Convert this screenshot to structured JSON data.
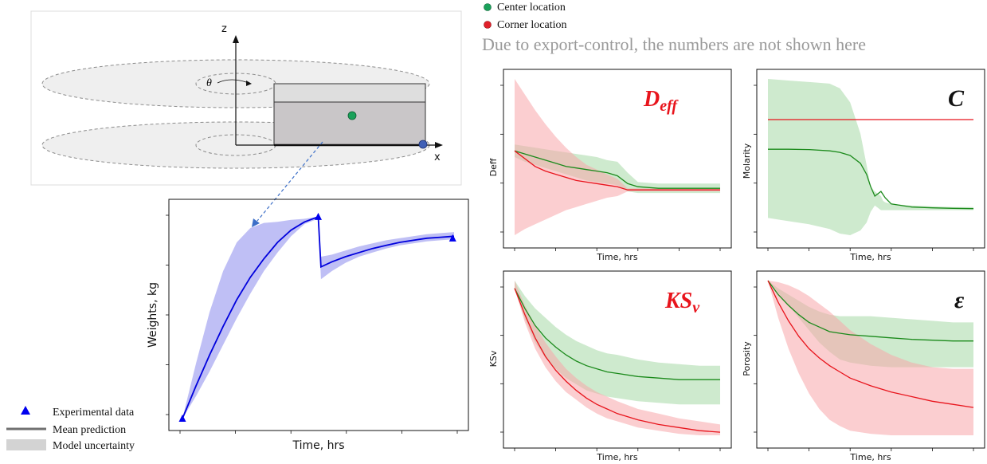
{
  "schematic": {
    "axis_z": "z",
    "axis_x": "x",
    "theta": "θ"
  },
  "legend_left": {
    "items": [
      {
        "label": "Experimental data",
        "kind": "triangle",
        "color": "#0000ee"
      },
      {
        "label": "Mean prediction",
        "kind": "line",
        "color": "#707070"
      },
      {
        "label": "Model uncertainty",
        "kind": "box",
        "color": "#d3d3d3"
      }
    ]
  },
  "legend_right": {
    "items": [
      {
        "label": "Center location",
        "color": "#1aa15a"
      },
      {
        "label": "Corner location",
        "color": "#e0202a"
      }
    ]
  },
  "notice": "Due to export-control, the numbers are not shown here",
  "colors": {
    "center": "#1b8a1b",
    "center_band": "#a6d9a6",
    "corner": "#e8141c",
    "corner_band": "#f7a5aa",
    "weights": "#0000dd",
    "weights_band": "#aaaaf2",
    "title_red": "#e8141c"
  },
  "chart_data": [
    {
      "type": "line",
      "id": "weights",
      "title": "",
      "xlabel": "Time, hrs",
      "ylabel": "Weights, kg",
      "x": [
        0,
        0.05,
        0.1,
        0.15,
        0.2,
        0.25,
        0.3,
        0.35,
        0.4,
        0.45,
        0.5,
        0.51,
        0.55,
        0.6,
        0.65,
        0.7,
        0.75,
        0.8,
        0.85,
        0.9,
        0.95,
        1.0
      ],
      "series": [
        {
          "values": [
            0.0,
            0.16,
            0.31,
            0.45,
            0.58,
            0.69,
            0.78,
            0.86,
            0.92,
            0.96,
            0.985,
            0.74,
            0.765,
            0.79,
            0.81,
            0.83,
            0.845,
            0.86,
            0.87,
            0.88,
            0.885,
            0.89
          ]
        },
        {
          "band_lower": [
            0.0,
            0.11,
            0.23,
            0.36,
            0.49,
            0.61,
            0.72,
            0.81,
            0.89,
            0.95,
            0.975,
            0.68,
            0.72,
            0.76,
            0.79,
            0.81,
            0.83,
            0.845,
            0.855,
            0.865,
            0.87,
            0.875
          ],
          "band_upper": [
            0.0,
            0.27,
            0.52,
            0.72,
            0.86,
            0.93,
            0.955,
            0.96,
            0.97,
            0.975,
            0.985,
            0.79,
            0.8,
            0.82,
            0.84,
            0.855,
            0.87,
            0.88,
            0.89,
            0.9,
            0.905,
            0.91
          ]
        }
      ],
      "experimental": [
        {
          "x": 0.0,
          "y": 0.0
        },
        {
          "x": 0.5,
          "y": 0.985
        },
        {
          "x": 0.995,
          "y": 0.88
        }
      ]
    },
    {
      "type": "line",
      "id": "deff",
      "title": "D_eff",
      "xlabel": "Time, hrs",
      "ylabel": "Deff",
      "x": [
        0,
        0.05,
        0.1,
        0.15,
        0.2,
        0.25,
        0.3,
        0.35,
        0.4,
        0.45,
        0.5,
        0.55,
        0.6,
        0.7,
        0.8,
        0.9,
        1.0
      ],
      "series": [
        {
          "name": "Center location",
          "values": [
            0.54,
            0.52,
            0.5,
            0.48,
            0.46,
            0.44,
            0.43,
            0.42,
            0.41,
            0.4,
            0.38,
            0.33,
            0.31,
            0.3,
            0.3,
            0.3,
            0.3
          ],
          "band_lower": [
            0.5,
            0.47,
            0.45,
            0.43,
            0.41,
            0.39,
            0.37,
            0.35,
            0.34,
            0.33,
            0.32,
            0.28,
            0.27,
            0.27,
            0.27,
            0.27,
            0.27
          ],
          "band_upper": [
            0.58,
            0.57,
            0.56,
            0.55,
            0.54,
            0.53,
            0.52,
            0.51,
            0.5,
            0.48,
            0.47,
            0.4,
            0.34,
            0.33,
            0.33,
            0.33,
            0.33
          ]
        },
        {
          "name": "Corner location",
          "values": [
            0.54,
            0.49,
            0.44,
            0.41,
            0.39,
            0.37,
            0.35,
            0.34,
            0.33,
            0.32,
            0.31,
            0.29,
            0.29,
            0.29,
            0.29,
            0.29,
            0.29
          ],
          "band_lower": [
            0.0,
            0.04,
            0.07,
            0.1,
            0.13,
            0.16,
            0.18,
            0.2,
            0.22,
            0.24,
            0.25,
            0.28,
            0.28,
            0.28,
            0.28,
            0.28,
            0.28
          ],
          "band_upper": [
            1.0,
            0.9,
            0.8,
            0.71,
            0.63,
            0.56,
            0.5,
            0.45,
            0.42,
            0.39,
            0.36,
            0.3,
            0.3,
            0.3,
            0.3,
            0.3,
            0.3
          ]
        }
      ]
    },
    {
      "type": "line",
      "id": "molarity",
      "title": "C",
      "xlabel": "Time, hrs",
      "ylabel": "Molarity",
      "x": [
        0,
        0.1,
        0.2,
        0.3,
        0.35,
        0.4,
        0.45,
        0.48,
        0.5,
        0.52,
        0.55,
        0.56,
        0.57,
        0.6,
        0.7,
        0.8,
        0.9,
        1.0
      ],
      "series": [
        {
          "name": "Center location",
          "values": [
            0.55,
            0.55,
            0.548,
            0.54,
            0.53,
            0.51,
            0.46,
            0.39,
            0.31,
            0.25,
            0.28,
            0.26,
            0.24,
            0.2,
            0.18,
            0.175,
            0.172,
            0.17
          ],
          "band_lower": [
            0.11,
            0.09,
            0.07,
            0.04,
            0.01,
            0.0,
            0.03,
            0.08,
            0.15,
            0.19,
            0.16,
            0.16,
            0.16,
            0.16,
            0.16,
            0.16,
            0.16,
            0.16
          ],
          "band_upper": [
            1.0,
            0.99,
            0.98,
            0.97,
            0.94,
            0.85,
            0.65,
            0.45,
            0.31,
            0.28,
            0.25,
            0.22,
            0.21,
            0.2,
            0.19,
            0.185,
            0.18,
            0.18
          ]
        },
        {
          "name": "Corner location",
          "values": [
            0.74,
            0.74,
            0.74,
            0.74,
            0.74,
            0.74,
            0.74,
            0.74,
            0.74,
            0.74,
            0.74,
            0.74,
            0.74,
            0.74,
            0.74,
            0.74,
            0.74,
            0.74
          ]
        }
      ]
    },
    {
      "type": "line",
      "id": "ksv",
      "title": "KS_v",
      "xlabel": "Time, hrs",
      "ylabel": "KSv",
      "x": [
        0,
        0.05,
        0.1,
        0.15,
        0.2,
        0.25,
        0.3,
        0.35,
        0.4,
        0.45,
        0.5,
        0.6,
        0.7,
        0.8,
        0.9,
        1.0
      ],
      "series": [
        {
          "name": "Center location",
          "values": [
            0.95,
            0.82,
            0.71,
            0.63,
            0.57,
            0.52,
            0.48,
            0.45,
            0.43,
            0.41,
            0.4,
            0.38,
            0.37,
            0.36,
            0.36,
            0.36
          ],
          "band_lower": [
            0.95,
            0.75,
            0.6,
            0.5,
            0.43,
            0.37,
            0.33,
            0.29,
            0.27,
            0.25,
            0.24,
            0.22,
            0.21,
            0.2,
            0.2,
            0.2
          ],
          "band_upper": [
            1.0,
            0.9,
            0.82,
            0.76,
            0.7,
            0.65,
            0.61,
            0.58,
            0.55,
            0.53,
            0.52,
            0.49,
            0.47,
            0.46,
            0.45,
            0.45
          ]
        },
        {
          "name": "Corner location",
          "values": [
            0.95,
            0.78,
            0.63,
            0.51,
            0.42,
            0.35,
            0.29,
            0.24,
            0.2,
            0.17,
            0.14,
            0.1,
            0.07,
            0.05,
            0.03,
            0.02
          ],
          "band_lower": [
            0.95,
            0.73,
            0.56,
            0.44,
            0.35,
            0.28,
            0.23,
            0.18,
            0.14,
            0.11,
            0.09,
            0.05,
            0.03,
            0.01,
            0.0,
            0.0
          ],
          "band_upper": [
            1.0,
            0.84,
            0.71,
            0.6,
            0.51,
            0.43,
            0.37,
            0.32,
            0.28,
            0.25,
            0.22,
            0.17,
            0.14,
            0.11,
            0.09,
            0.07
          ]
        }
      ]
    },
    {
      "type": "line",
      "id": "porosity",
      "title": "ε",
      "xlabel": "Time, hrs",
      "ylabel": "Porosity",
      "x": [
        0,
        0.05,
        0.1,
        0.15,
        0.2,
        0.25,
        0.3,
        0.35,
        0.4,
        0.5,
        0.6,
        0.7,
        0.8,
        0.9,
        1.0
      ],
      "series": [
        {
          "name": "Center location",
          "values": [
            1.0,
            0.91,
            0.84,
            0.78,
            0.73,
            0.7,
            0.67,
            0.66,
            0.65,
            0.64,
            0.63,
            0.62,
            0.615,
            0.61,
            0.61
          ],
          "band_lower": [
            1.0,
            0.92,
            0.84,
            0.76,
            0.68,
            0.6,
            0.54,
            0.49,
            0.47,
            0.45,
            0.44,
            0.44,
            0.44,
            0.44,
            0.44
          ],
          "band_upper": [
            1.0,
            0.95,
            0.91,
            0.87,
            0.83,
            0.8,
            0.78,
            0.77,
            0.77,
            0.77,
            0.76,
            0.75,
            0.74,
            0.73,
            0.73
          ]
        },
        {
          "name": "Corner location",
          "values": [
            1.0,
            0.86,
            0.74,
            0.64,
            0.56,
            0.5,
            0.45,
            0.41,
            0.37,
            0.32,
            0.28,
            0.25,
            0.22,
            0.2,
            0.18
          ],
          "band_lower": [
            1.0,
            0.76,
            0.56,
            0.4,
            0.27,
            0.17,
            0.1,
            0.06,
            0.03,
            0.01,
            0.0,
            0.0,
            0.0,
            0.0,
            0.0
          ],
          "band_upper": [
            1.0,
            0.99,
            0.97,
            0.94,
            0.9,
            0.85,
            0.8,
            0.74,
            0.68,
            0.59,
            0.52,
            0.47,
            0.44,
            0.43,
            0.43
          ]
        }
      ]
    }
  ]
}
